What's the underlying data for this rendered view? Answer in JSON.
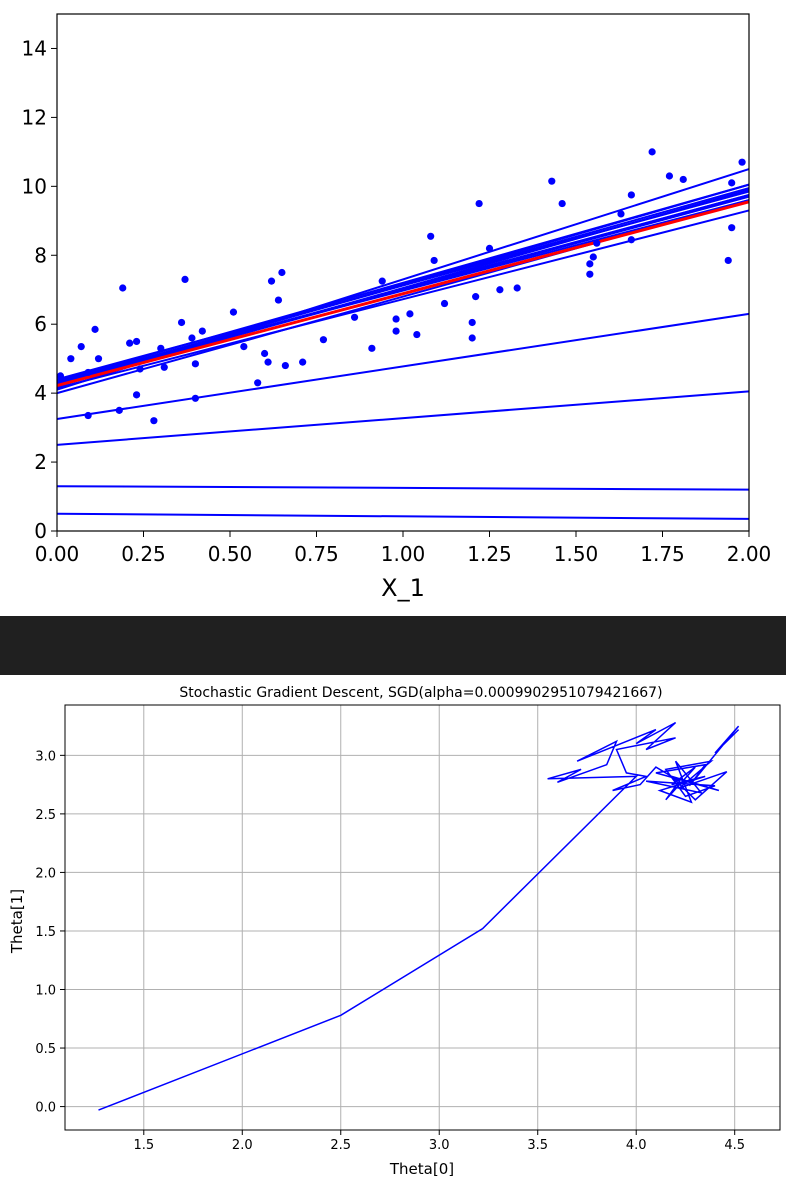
{
  "chart_data": [
    {
      "type": "line",
      "title": "",
      "xlabel": "X_1",
      "ylabel": "",
      "xlim": [
        0.0,
        2.0
      ],
      "ylim": [
        0,
        15
      ],
      "grid": false,
      "x_ticks": [
        "0.00",
        "0.25",
        "0.50",
        "0.75",
        "1.00",
        "1.25",
        "1.50",
        "1.75",
        "2.00"
      ],
      "y_ticks": [
        "0",
        "2",
        "4",
        "6",
        "8",
        "10",
        "12",
        "14"
      ],
      "colors": {
        "points": "#0000ff",
        "lines": "#0000ff",
        "final_line": "#ff0000"
      },
      "scatter": [
        [
          0.01,
          4.5
        ],
        [
          0.04,
          5.0
        ],
        [
          0.07,
          5.35
        ],
        [
          0.09,
          3.35
        ],
        [
          0.09,
          4.6
        ],
        [
          0.11,
          5.85
        ],
        [
          0.12,
          5.0
        ],
        [
          0.18,
          3.5
        ],
        [
          0.19,
          7.05
        ],
        [
          0.21,
          5.45
        ],
        [
          0.23,
          3.95
        ],
        [
          0.23,
          5.5
        ],
        [
          0.24,
          4.7
        ],
        [
          0.28,
          3.2
        ],
        [
          0.3,
          5.3
        ],
        [
          0.31,
          4.75
        ],
        [
          0.36,
          6.05
        ],
        [
          0.37,
          7.3
        ],
        [
          0.39,
          5.6
        ],
        [
          0.4,
          3.85
        ],
        [
          0.4,
          4.85
        ],
        [
          0.42,
          5.8
        ],
        [
          0.51,
          6.35
        ],
        [
          0.54,
          5.35
        ],
        [
          0.58,
          4.3
        ],
        [
          0.6,
          5.15
        ],
        [
          0.61,
          4.9
        ],
        [
          0.62,
          7.25
        ],
        [
          0.64,
          6.7
        ],
        [
          0.65,
          7.5
        ],
        [
          0.66,
          4.8
        ],
        [
          0.71,
          4.9
        ],
        [
          0.77,
          5.55
        ],
        [
          0.86,
          6.2
        ],
        [
          0.91,
          5.3
        ],
        [
          0.94,
          7.25
        ],
        [
          0.98,
          5.8
        ],
        [
          0.98,
          6.15
        ],
        [
          1.02,
          6.3
        ],
        [
          1.04,
          5.7
        ],
        [
          1.08,
          8.55
        ],
        [
          1.09,
          7.85
        ],
        [
          1.12,
          6.6
        ],
        [
          1.2,
          5.6
        ],
        [
          1.2,
          6.05
        ],
        [
          1.21,
          6.8
        ],
        [
          1.22,
          9.5
        ],
        [
          1.25,
          8.2
        ],
        [
          1.28,
          7.0
        ],
        [
          1.33,
          7.05
        ],
        [
          1.43,
          10.15
        ],
        [
          1.46,
          9.5
        ],
        [
          1.54,
          7.45
        ],
        [
          1.54,
          7.75
        ],
        [
          1.55,
          7.95
        ],
        [
          1.56,
          8.35
        ],
        [
          1.63,
          9.2
        ],
        [
          1.66,
          8.45
        ],
        [
          1.66,
          9.75
        ],
        [
          1.72,
          11.0
        ],
        [
          1.77,
          10.3
        ],
        [
          1.81,
          10.2
        ],
        [
          1.94,
          7.85
        ],
        [
          1.95,
          8.8
        ],
        [
          1.95,
          10.1
        ],
        [
          1.98,
          10.7
        ]
      ],
      "iteration_lines": [
        [
          0.5,
          0.35
        ],
        [
          1.3,
          1.2
        ],
        [
          2.5,
          4.05
        ],
        [
          3.25,
          6.3
        ],
        [
          4.1,
          10.5
        ],
        [
          4.15,
          9.3
        ],
        [
          4.0,
          9.6
        ],
        [
          4.3,
          9.75
        ],
        [
          4.35,
          9.6
        ],
        [
          4.2,
          9.9
        ],
        [
          4.25,
          10.05
        ],
        [
          4.4,
          9.85
        ],
        [
          4.3,
          9.95
        ],
        [
          4.35,
          10.05
        ],
        [
          4.25,
          9.75
        ],
        [
          4.3,
          9.7
        ]
      ],
      "final_line": [
        4.22,
        9.55
      ]
    },
    {
      "type": "line",
      "title": "Stochastic Gradient Descent, SGD(alpha=0.0009902951079421667)",
      "xlabel": "Theta[0]",
      "ylabel": "Theta[1]",
      "xlim": [
        1.1,
        4.73
      ],
      "ylim": [
        -0.2,
        3.43
      ],
      "grid": true,
      "x_ticks": [
        "1.5",
        "2.0",
        "2.5",
        "3.0",
        "3.5",
        "4.0",
        "4.5"
      ],
      "y_ticks": [
        "0.0",
        "0.5",
        "1.0",
        "1.5",
        "2.0",
        "2.5",
        "3.0"
      ],
      "colors": {
        "path": "#0000ff",
        "grid": "#b0b0b0"
      },
      "path": [
        [
          1.27,
          -0.03
        ],
        [
          2.5,
          0.78
        ],
        [
          3.22,
          1.52
        ],
        [
          4.0,
          2.82
        ],
        [
          3.55,
          2.8
        ],
        [
          3.72,
          2.88
        ],
        [
          3.6,
          2.77
        ],
        [
          3.85,
          2.92
        ],
        [
          3.9,
          3.12
        ],
        [
          3.7,
          2.95
        ],
        [
          4.1,
          3.22
        ],
        [
          4.0,
          3.1
        ],
        [
          4.2,
          3.28
        ],
        [
          4.05,
          3.05
        ],
        [
          4.2,
          3.15
        ],
        [
          3.9,
          3.05
        ],
        [
          3.95,
          2.85
        ],
        [
          4.05,
          2.82
        ],
        [
          3.88,
          2.7
        ],
        [
          4.02,
          2.75
        ],
        [
          4.1,
          2.9
        ],
        [
          4.22,
          2.78
        ],
        [
          4.15,
          2.62
        ],
        [
          4.3,
          2.9
        ],
        [
          4.18,
          2.75
        ],
        [
          4.35,
          2.82
        ],
        [
          4.12,
          2.7
        ],
        [
          4.28,
          2.6
        ],
        [
          4.2,
          2.95
        ],
        [
          4.33,
          2.68
        ],
        [
          4.05,
          2.78
        ],
        [
          4.4,
          2.74
        ],
        [
          4.25,
          2.65
        ],
        [
          4.15,
          2.88
        ],
        [
          4.38,
          2.95
        ],
        [
          4.22,
          2.72
        ],
        [
          4.46,
          2.86
        ],
        [
          4.3,
          2.62
        ],
        [
          4.18,
          2.82
        ],
        [
          4.42,
          2.7
        ],
        [
          4.1,
          2.85
        ],
        [
          4.35,
          2.92
        ],
        [
          4.27,
          2.74
        ],
        [
          4.52,
          3.25
        ],
        [
          4.4,
          3.02
        ],
        [
          4.52,
          3.22
        ]
      ]
    }
  ]
}
